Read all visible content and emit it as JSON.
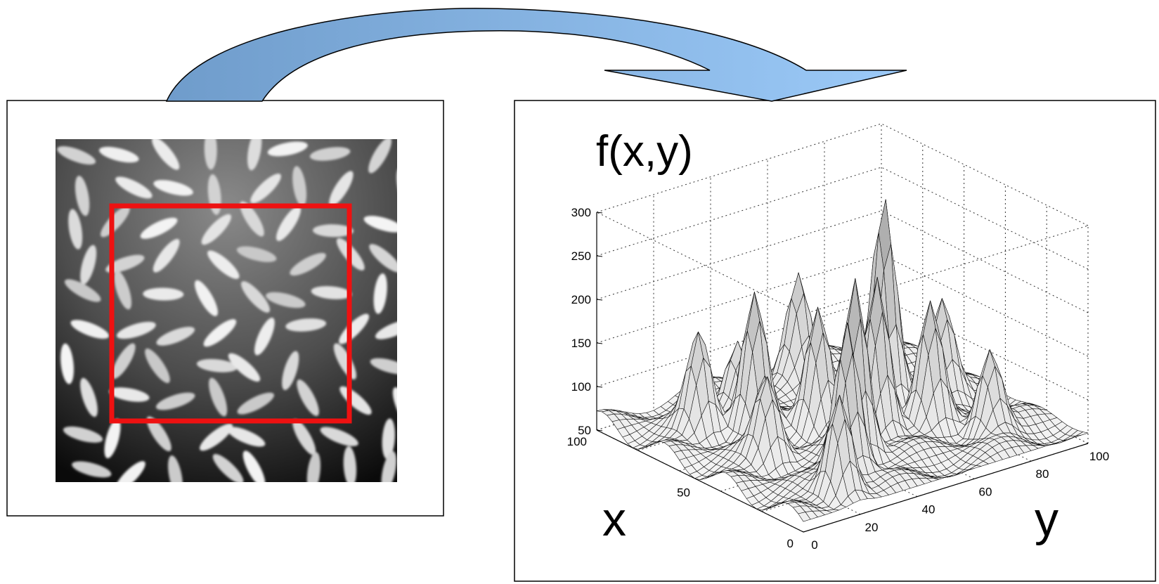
{
  "colors": {
    "arrow_fill_dark": "#6f9ccb",
    "arrow_fill_light": "#9ccaf8",
    "roi_box": "#ee1111",
    "surface_line": "#111111",
    "background": "#ffffff"
  },
  "left_panel": {
    "image": "grayscale-rice-grains",
    "overlay": "red-rectangle-roi"
  },
  "right_panel": {
    "function_label": "f(x,y)",
    "x_axis_label": "x",
    "y_axis_label": "y",
    "plot": "3d-mesh-surface"
  },
  "chart_data": {
    "type": "surface",
    "z_ticks": [
      "300",
      "250",
      "200",
      "150",
      "100",
      "50"
    ],
    "x_ticks": [
      "100",
      "50",
      "0"
    ],
    "y_ticks": [
      "0",
      "20",
      "40",
      "60",
      "80",
      "100"
    ],
    "zlim": [
      50,
      300
    ],
    "xlim": [
      0,
      100
    ],
    "ylim": [
      0,
      100
    ],
    "grid": true,
    "peaks": [
      {
        "x": 20,
        "y": 30,
        "z": 240
      },
      {
        "x": 30,
        "y": 40,
        "z": 265
      },
      {
        "x": 40,
        "y": 55,
        "z": 250
      },
      {
        "x": 60,
        "y": 72,
        "z": 290
      },
      {
        "x": 10,
        "y": 20,
        "z": 185
      },
      {
        "x": 75,
        "y": 18,
        "z": 175
      },
      {
        "x": 55,
        "y": 45,
        "z": 200
      },
      {
        "x": 35,
        "y": 70,
        "z": 195
      },
      {
        "x": 50,
        "y": 85,
        "z": 170
      },
      {
        "x": 80,
        "y": 35,
        "z": 150
      },
      {
        "x": 20,
        "y": 80,
        "z": 160
      },
      {
        "x": 85,
        "y": 60,
        "z": 180
      },
      {
        "x": 65,
        "y": 30,
        "z": 215
      },
      {
        "x": 45,
        "y": 20,
        "z": 155
      }
    ]
  }
}
